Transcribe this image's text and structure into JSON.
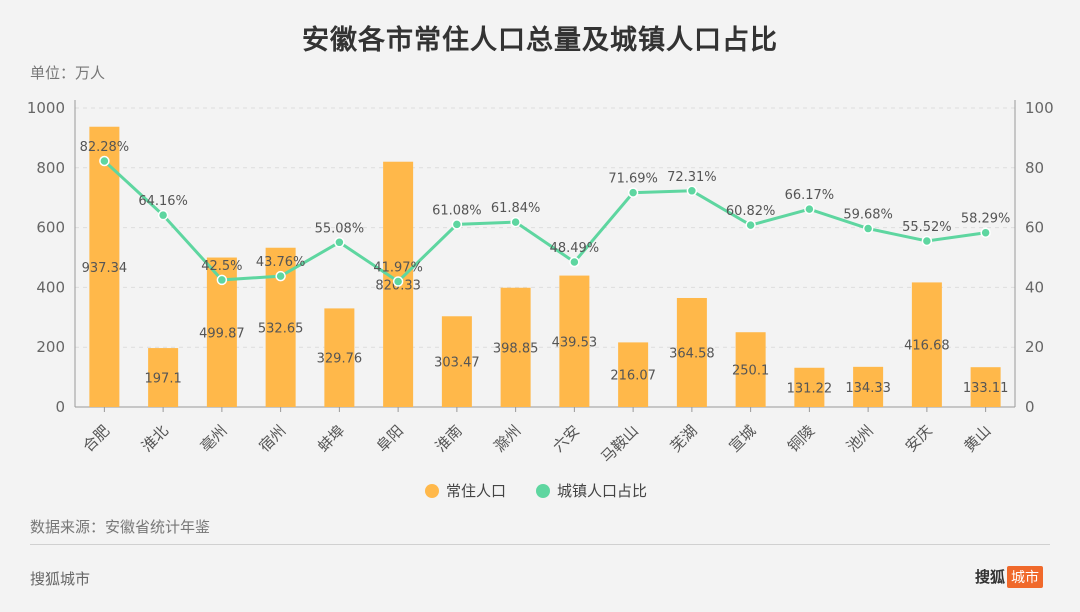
{
  "title": "安徽各市常住人口总量及城镇人口占比",
  "unit_label": "单位：万人",
  "source_label": "数据来源：安徽省统计年鉴",
  "footer_left": "搜狐城市",
  "footer_right_brand": "搜狐",
  "footer_right_tag": "城市",
  "colors": {
    "bar": "#ffb84a",
    "line": "#5ed6a0",
    "grid": "#dddddd"
  },
  "chart_data": {
    "type": "bar",
    "categories": [
      "合肥",
      "淮北",
      "亳州",
      "宿州",
      "蚌埠",
      "阜阳",
      "淮南",
      "滁州",
      "六安",
      "马鞍山",
      "芜湖",
      "宣城",
      "铜陵",
      "池州",
      "安庆",
      "黄山"
    ],
    "series": [
      {
        "name": "常住人口",
        "type": "bar",
        "axis": "left",
        "values": [
          937.34,
          197.1,
          499.87,
          532.65,
          329.76,
          820.33,
          303.47,
          398.85,
          439.53,
          216.07,
          364.58,
          250.1,
          131.22,
          134.33,
          416.68,
          133.11
        ],
        "labels": [
          "937.34",
          "197.1",
          "499.87",
          "532.65",
          "329.76",
          "820.33",
          "303.47",
          "398.85",
          "439.53",
          "216.07",
          "364.58",
          "250.1",
          "131.22",
          "134.33",
          "416.68",
          "133.11"
        ]
      },
      {
        "name": "城镇人口占比",
        "type": "line",
        "axis": "right",
        "values": [
          82.28,
          64.16,
          42.5,
          43.76,
          55.08,
          41.97,
          61.08,
          61.84,
          48.49,
          71.69,
          72.31,
          60.82,
          66.17,
          59.68,
          55.52,
          58.29
        ],
        "labels": [
          "82.28%",
          "64.16%",
          "42.5%",
          "43.76%",
          "55.08%",
          "41.97%",
          "61.08%",
          "61.84%",
          "48.49%",
          "71.69%",
          "72.31%",
          "60.82%",
          "66.17%",
          "59.68%",
          "55.52%",
          "58.29%"
        ]
      }
    ],
    "y_left": {
      "min": 0,
      "max": 1000,
      "ticks": [
        "0",
        "200",
        "400",
        "600",
        "800",
        "1000"
      ]
    },
    "y_right": {
      "min": 0,
      "max": 100,
      "ticks": [
        "0",
        "20",
        "40",
        "60",
        "80",
        "100"
      ]
    },
    "legend": [
      "常住人口",
      "城镇人口占比"
    ],
    "legend_position": "bottom",
    "grid": true
  }
}
